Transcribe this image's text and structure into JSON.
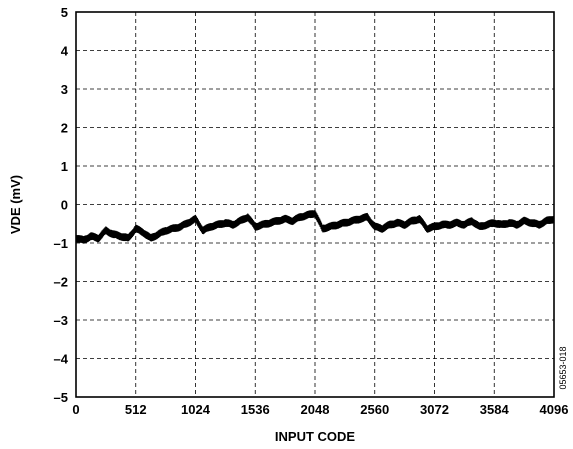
{
  "chart_data": {
    "type": "line",
    "xlabel": "INPUT CODE",
    "ylabel": "VDE (mV)",
    "xlim": [
      0,
      4096
    ],
    "ylim": [
      -5,
      5
    ],
    "x_ticks": [
      0,
      512,
      1024,
      1536,
      2048,
      2560,
      3072,
      3584,
      4096
    ],
    "x_tick_labels": [
      "0",
      "512",
      "1024",
      "1536",
      "2048",
      "2560",
      "3072",
      "3584",
      "4096"
    ],
    "y_ticks": [
      5,
      4,
      3,
      2,
      1,
      0,
      -1,
      -2,
      -3,
      -4,
      -5
    ],
    "y_tick_labels": [
      "5",
      "4",
      "3",
      "2",
      "1",
      "0",
      "–1",
      "–2",
      "–3",
      "–4",
      "–5"
    ],
    "grid": true,
    "legend": "none",
    "figure_id": "05653-018",
    "series": [
      {
        "x": [
          0,
          64,
          128,
          192,
          256,
          320,
          384,
          448,
          512,
          576,
          640,
          704,
          768,
          832,
          896,
          960,
          1024,
          1088,
          1152,
          1216,
          1280,
          1344,
          1408,
          1472,
          1536,
          1600,
          1664,
          1728,
          1792,
          1856,
          1920,
          1984,
          2048,
          2112,
          2176,
          2240,
          2304,
          2368,
          2432,
          2496,
          2560,
          2624,
          2688,
          2752,
          2816,
          2880,
          2944,
          3008,
          3072,
          3136,
          3200,
          3264,
          3328,
          3392,
          3456,
          3520,
          3584,
          3648,
          3712,
          3776,
          3840,
          3904,
          3968,
          4032,
          4096
        ],
        "values": [
          -0.85,
          -0.9,
          -0.8,
          -0.85,
          -0.65,
          -0.75,
          -0.8,
          -0.85,
          -0.6,
          -0.7,
          -0.85,
          -0.75,
          -0.65,
          -0.6,
          -0.55,
          -0.45,
          -0.35,
          -0.65,
          -0.55,
          -0.5,
          -0.45,
          -0.5,
          -0.4,
          -0.3,
          -0.55,
          -0.5,
          -0.45,
          -0.4,
          -0.35,
          -0.4,
          -0.3,
          -0.25,
          -0.2,
          -0.6,
          -0.55,
          -0.5,
          -0.45,
          -0.4,
          -0.35,
          -0.3,
          -0.55,
          -0.6,
          -0.5,
          -0.45,
          -0.5,
          -0.4,
          -0.35,
          -0.6,
          -0.55,
          -0.5,
          -0.5,
          -0.45,
          -0.5,
          -0.4,
          -0.55,
          -0.5,
          -0.45,
          -0.5,
          -0.45,
          -0.5,
          -0.4,
          -0.45,
          -0.5,
          -0.4,
          -0.35
        ]
      }
    ]
  }
}
